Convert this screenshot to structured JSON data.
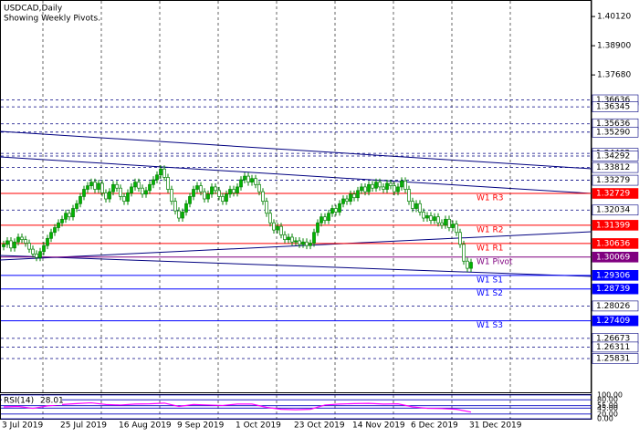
{
  "chart_data": {
    "type": "candlestick",
    "title": "USDCAD,Daily",
    "subtitle": "Showing Weekly Pivots.",
    "colors": {
      "up": "#00b400",
      "down": "#ffffff",
      "wick": "#008000",
      "trend": "#000080"
    },
    "ylim": [
      1.2442,
      1.4081
    ],
    "yticks": [
      {
        "value": 1.4012,
        "label": "1.40120"
      },
      {
        "value": 1.389,
        "label": "1.38900"
      },
      {
        "value": 1.3768,
        "label": "1.37680"
      }
    ],
    "levels": [
      {
        "value": 1.36636,
        "label": "1.36636",
        "style": "dashed",
        "color": "#000080"
      },
      {
        "value": 1.36345,
        "label": "1.36345",
        "style": "dashed",
        "color": "#000080"
      },
      {
        "value": 1.35636,
        "label": "1.35636",
        "style": "dashed",
        "color": "#000080"
      },
      {
        "value": 1.3529,
        "label": "1.35290",
        "style": "dashed",
        "color": "#000080"
      },
      {
        "value": 1.34402,
        "label": "1.34402",
        "style": "dashed",
        "color": "#000080"
      },
      {
        "value": 1.34292,
        "label": "1.34292",
        "style": "dashed",
        "color": "#000080"
      },
      {
        "value": 1.33812,
        "label": "1.33812",
        "style": "dashed",
        "color": "#000080"
      },
      {
        "value": 1.33279,
        "label": "1.33279",
        "style": "dashed",
        "color": "#000080"
      },
      {
        "value": 1.32034,
        "label": "1.32034",
        "style": "dashed",
        "color": "#000080"
      },
      {
        "value": 1.28026,
        "label": "1.28026",
        "style": "dashed",
        "color": "#000080"
      },
      {
        "value": 1.26673,
        "label": "1.26673",
        "style": "dashed",
        "color": "#000080"
      },
      {
        "value": 1.26311,
        "label": "1.26311",
        "style": "dashed",
        "color": "#000080"
      },
      {
        "value": 1.25831,
        "label": "1.25831",
        "style": "dashed",
        "color": "#000080"
      },
      {
        "value": 1.32729,
        "label": "1.32729",
        "style": "solid",
        "color": "#ff0000",
        "name": "W1 R3"
      },
      {
        "value": 1.31399,
        "label": "1.31399",
        "style": "solid",
        "color": "#ff0000",
        "name": "W1 R2"
      },
      {
        "value": 1.30636,
        "label": "1.30636",
        "style": "solid",
        "color": "#ff0000",
        "name": "W1 R1"
      },
      {
        "value": 1.30069,
        "label": "1.30069",
        "style": "solid",
        "color": "#800080",
        "name": "W1 Pivot"
      },
      {
        "value": 1.29306,
        "label": "1.29306",
        "style": "solid",
        "color": "#0000ff",
        "name": "W1 S1"
      },
      {
        "value": 1.28739,
        "label": "1.28739",
        "style": "solid",
        "color": "#0000ff",
        "name": "W1 S2"
      },
      {
        "value": 1.27409,
        "label": "1.27409",
        "style": "solid",
        "color": "#0000ff",
        "name": "W1 S3"
      }
    ],
    "date_ticks": [
      {
        "value": 0,
        "label": "3 Jul 2019"
      },
      {
        "value": 16,
        "label": "25 Jul 2019"
      },
      {
        "value": 32,
        "label": "16 Aug 2019"
      },
      {
        "value": 48,
        "label": "9 Sep 2019"
      },
      {
        "value": 64,
        "label": "1 Oct 2019"
      },
      {
        "value": 80,
        "label": "23 Oct 2019"
      },
      {
        "value": 96,
        "label": "14 Nov 2019"
      },
      {
        "value": 112,
        "label": "6 Dec 2019"
      },
      {
        "value": 128,
        "label": "31 Dec 2019"
      }
    ],
    "candles": [
      [
        1.305,
        1.3075,
        1.3035,
        1.306
      ],
      [
        1.306,
        1.309,
        1.3045,
        1.3075
      ],
      [
        1.3075,
        1.309,
        1.303,
        1.3045
      ],
      [
        1.3045,
        1.3085,
        1.303,
        1.307
      ],
      [
        1.307,
        1.3105,
        1.3055,
        1.309
      ],
      [
        1.309,
        1.3105,
        1.3065,
        1.308
      ],
      [
        1.308,
        1.3095,
        1.305,
        1.3065
      ],
      [
        1.3065,
        1.308,
        1.3025,
        1.304
      ],
      [
        1.304,
        1.3055,
        1.3005,
        1.302
      ],
      [
        1.302,
        1.3035,
        1.299,
        1.3005
      ],
      [
        1.3005,
        1.3045,
        1.299,
        1.303
      ],
      [
        1.303,
        1.307,
        1.3015,
        1.3055
      ],
      [
        1.3055,
        1.31,
        1.304,
        1.3085
      ],
      [
        1.3085,
        1.3125,
        1.307,
        1.311
      ],
      [
        1.311,
        1.3145,
        1.3095,
        1.313
      ],
      [
        1.313,
        1.3165,
        1.3115,
        1.315
      ],
      [
        1.315,
        1.318,
        1.3135,
        1.3165
      ],
      [
        1.3165,
        1.3205,
        1.315,
        1.319
      ],
      [
        1.319,
        1.3205,
        1.316,
        1.3175
      ],
      [
        1.3175,
        1.3225,
        1.316,
        1.321
      ],
      [
        1.321,
        1.3245,
        1.3195,
        1.323
      ],
      [
        1.323,
        1.3275,
        1.3215,
        1.326
      ],
      [
        1.326,
        1.3305,
        1.3245,
        1.329
      ],
      [
        1.329,
        1.332,
        1.3275,
        1.3305
      ],
      [
        1.3305,
        1.3335,
        1.329,
        1.332
      ],
      [
        1.332,
        1.3335,
        1.3275,
        1.329
      ],
      [
        1.329,
        1.333,
        1.3275,
        1.3315
      ],
      [
        1.3315,
        1.333,
        1.326,
        1.3275
      ],
      [
        1.3275,
        1.329,
        1.3235,
        1.325
      ],
      [
        1.325,
        1.3295,
        1.3235,
        1.328
      ],
      [
        1.328,
        1.3325,
        1.3265,
        1.331
      ],
      [
        1.331,
        1.3325,
        1.328,
        1.3295
      ],
      [
        1.3295,
        1.331,
        1.3245,
        1.326
      ],
      [
        1.326,
        1.3275,
        1.3225,
        1.324
      ],
      [
        1.324,
        1.329,
        1.3225,
        1.3275
      ],
      [
        1.3275,
        1.3315,
        1.326,
        1.33
      ],
      [
        1.33,
        1.3335,
        1.3285,
        1.332
      ],
      [
        1.332,
        1.3335,
        1.328,
        1.3295
      ],
      [
        1.3295,
        1.331,
        1.3255,
        1.327
      ],
      [
        1.327,
        1.33,
        1.3255,
        1.3285
      ],
      [
        1.3285,
        1.3325,
        1.327,
        1.331
      ],
      [
        1.331,
        1.3345,
        1.3295,
        1.333
      ],
      [
        1.333,
        1.3365,
        1.3315,
        1.335
      ],
      [
        1.335,
        1.339,
        1.3335,
        1.3375
      ],
      [
        1.3375,
        1.339,
        1.3325,
        1.334
      ],
      [
        1.334,
        1.3355,
        1.3275,
        1.329
      ],
      [
        1.329,
        1.3305,
        1.3225,
        1.324
      ],
      [
        1.324,
        1.3255,
        1.3185,
        1.32
      ],
      [
        1.32,
        1.3215,
        1.3155,
        1.317
      ],
      [
        1.317,
        1.321,
        1.3155,
        1.3195
      ],
      [
        1.3195,
        1.3245,
        1.318,
        1.323
      ],
      [
        1.323,
        1.3275,
        1.3215,
        1.326
      ],
      [
        1.326,
        1.3305,
        1.3245,
        1.329
      ],
      [
        1.329,
        1.332,
        1.3275,
        1.3305
      ],
      [
        1.3305,
        1.332,
        1.3265,
        1.328
      ],
      [
        1.328,
        1.3295,
        1.3235,
        1.325
      ],
      [
        1.325,
        1.3285,
        1.3235,
        1.327
      ],
      [
        1.327,
        1.3315,
        1.3255,
        1.33
      ],
      [
        1.33,
        1.3315,
        1.327,
        1.3285
      ],
      [
        1.3285,
        1.33,
        1.3245,
        1.326
      ],
      [
        1.326,
        1.3275,
        1.3225,
        1.324
      ],
      [
        1.324,
        1.3285,
        1.3225,
        1.327
      ],
      [
        1.327,
        1.3305,
        1.3255,
        1.329
      ],
      [
        1.329,
        1.3305,
        1.326,
        1.3275
      ],
      [
        1.3275,
        1.3315,
        1.326,
        1.33
      ],
      [
        1.33,
        1.3345,
        1.3285,
        1.333
      ],
      [
        1.333,
        1.336,
        1.3315,
        1.3345
      ],
      [
        1.3345,
        1.336,
        1.3305,
        1.332
      ],
      [
        1.332,
        1.335,
        1.3305,
        1.3335
      ],
      [
        1.3335,
        1.335,
        1.3295,
        1.331
      ],
      [
        1.331,
        1.3325,
        1.3265,
        1.328
      ],
      [
        1.328,
        1.3295,
        1.3225,
        1.324
      ],
      [
        1.324,
        1.3255,
        1.3175,
        1.319
      ],
      [
        1.319,
        1.3205,
        1.3135,
        1.315
      ],
      [
        1.315,
        1.3165,
        1.3105,
        1.312
      ],
      [
        1.312,
        1.315,
        1.3105,
        1.3135
      ],
      [
        1.3135,
        1.315,
        1.3085,
        1.31
      ],
      [
        1.31,
        1.3115,
        1.3065,
        1.308
      ],
      [
        1.308,
        1.3105,
        1.3065,
        1.309
      ],
      [
        1.309,
        1.3105,
        1.3055,
        1.307
      ],
      [
        1.307,
        1.309,
        1.3055,
        1.3075
      ],
      [
        1.3075,
        1.309,
        1.3045,
        1.306
      ],
      [
        1.306,
        1.3085,
        1.3045,
        1.307
      ],
      [
        1.307,
        1.3085,
        1.304,
        1.3055
      ],
      [
        1.3055,
        1.308,
        1.304,
        1.3065
      ],
      [
        1.3065,
        1.3125,
        1.305,
        1.311
      ],
      [
        1.311,
        1.3165,
        1.3095,
        1.315
      ],
      [
        1.315,
        1.319,
        1.3135,
        1.3175
      ],
      [
        1.3175,
        1.319,
        1.3145,
        1.316
      ],
      [
        1.316,
        1.3205,
        1.3145,
        1.319
      ],
      [
        1.319,
        1.3225,
        1.3175,
        1.321
      ],
      [
        1.321,
        1.3225,
        1.318,
        1.3195
      ],
      [
        1.3195,
        1.3245,
        1.318,
        1.323
      ],
      [
        1.323,
        1.3265,
        1.3215,
        1.325
      ],
      [
        1.325,
        1.3265,
        1.3225,
        1.324
      ],
      [
        1.324,
        1.3285,
        1.3225,
        1.327
      ],
      [
        1.327,
        1.3285,
        1.324,
        1.3255
      ],
      [
        1.3255,
        1.33,
        1.324,
        1.3285
      ],
      [
        1.3285,
        1.3315,
        1.327,
        1.33
      ],
      [
        1.33,
        1.3315,
        1.3265,
        1.328
      ],
      [
        1.328,
        1.3325,
        1.3265,
        1.331
      ],
      [
        1.331,
        1.3325,
        1.328,
        1.3295
      ],
      [
        1.3295,
        1.3335,
        1.328,
        1.332
      ],
      [
        1.332,
        1.3335,
        1.3285,
        1.33
      ],
      [
        1.33,
        1.3315,
        1.3275,
        1.329
      ],
      [
        1.329,
        1.333,
        1.3275,
        1.3315
      ],
      [
        1.3315,
        1.333,
        1.329,
        1.3305
      ],
      [
        1.3305,
        1.332,
        1.3265,
        1.328
      ],
      [
        1.328,
        1.3315,
        1.3265,
        1.33
      ],
      [
        1.33,
        1.334,
        1.3285,
        1.3325
      ],
      [
        1.3325,
        1.334,
        1.3275,
        1.329
      ],
      [
        1.329,
        1.3305,
        1.3225,
        1.324
      ],
      [
        1.324,
        1.3255,
        1.3195,
        1.321
      ],
      [
        1.321,
        1.3245,
        1.3195,
        1.323
      ],
      [
        1.323,
        1.3245,
        1.318,
        1.3195
      ],
      [
        1.3195,
        1.321,
        1.3155,
        1.317
      ],
      [
        1.317,
        1.3195,
        1.3155,
        1.318
      ],
      [
        1.318,
        1.3195,
        1.3145,
        1.316
      ],
      [
        1.316,
        1.319,
        1.3145,
        1.3175
      ],
      [
        1.3175,
        1.319,
        1.3135,
        1.315
      ],
      [
        1.315,
        1.3165,
        1.3125,
        1.314
      ],
      [
        1.314,
        1.318,
        1.3125,
        1.3165
      ],
      [
        1.3165,
        1.318,
        1.3115,
        1.313
      ],
      [
        1.313,
        1.316,
        1.3115,
        1.3145
      ],
      [
        1.3145,
        1.316,
        1.3095,
        1.311
      ],
      [
        1.311,
        1.3125,
        1.3045,
        1.306
      ],
      [
        1.306,
        1.3075,
        1.2975,
        1.299
      ],
      [
        1.299,
        1.3005,
        1.2945,
        1.296
      ],
      [
        1.296,
        1.3,
        1.2945,
        1.2985
      ]
    ],
    "rsi": {
      "name": "RSI(14)",
      "color": "#ff00ff",
      "line_color": "#0000c0",
      "ylim": [
        0,
        100
      ],
      "yticks": [
        {
          "value": 100,
          "label": "100.00"
        },
        {
          "value": 80,
          "label": "80.00"
        },
        {
          "value": 55,
          "label": "55.00"
        },
        {
          "value": 45,
          "label": "45.00"
        },
        {
          "value": 20,
          "label": "20.00"
        },
        {
          "value": 0,
          "label": "0.00"
        }
      ],
      "x": [
        0,
        4,
        8,
        12,
        16,
        20,
        24,
        28,
        32,
        36,
        40,
        44,
        48,
        52,
        56,
        60,
        64,
        68,
        72,
        76,
        80,
        84,
        88,
        92,
        96,
        100,
        104,
        108,
        112,
        116,
        120,
        124,
        128
      ],
      "values": [
        50,
        52,
        44,
        54,
        60,
        64,
        67,
        60,
        58,
        62,
        63,
        66,
        52,
        60,
        58,
        56,
        62,
        62,
        48,
        40,
        38,
        40,
        58,
        62,
        64,
        65,
        62,
        63,
        50,
        44,
        43,
        40,
        28.01
      ]
    }
  }
}
